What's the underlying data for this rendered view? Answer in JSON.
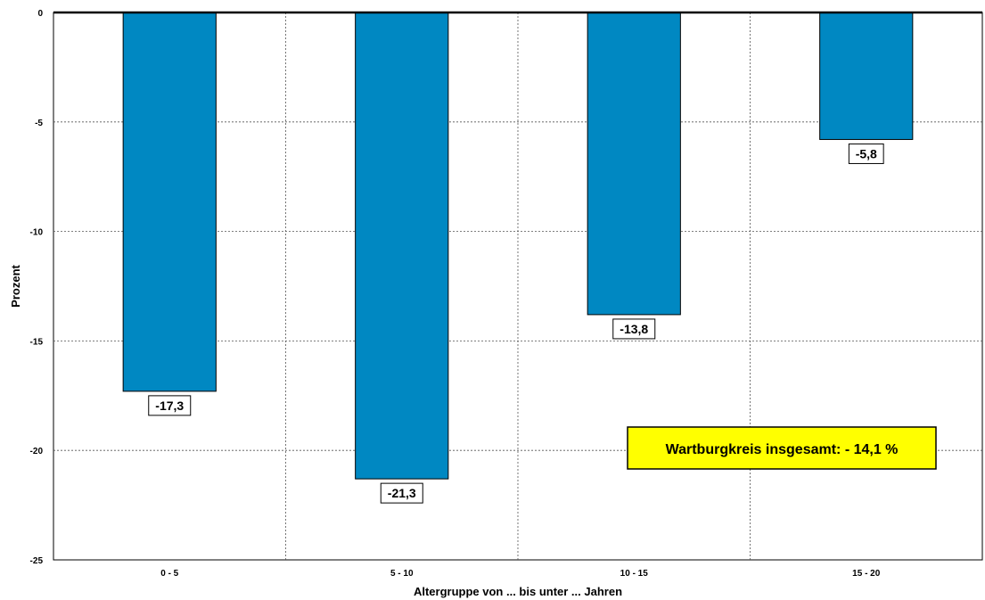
{
  "chart_data": {
    "type": "bar",
    "categories": [
      "0 - 5",
      "5 - 10",
      "10 - 15",
      "15 - 20"
    ],
    "values": [
      -17.3,
      -21.3,
      -13.8,
      -5.8
    ],
    "value_labels": [
      "-17,3",
      "-21,3",
      "-13,8",
      "-5,8"
    ],
    "xlabel": "Altergruppe von ... bis unter ... Jahren",
    "ylabel": "Prozent",
    "ylim": [
      -25,
      0
    ],
    "yticks": [
      0,
      -5,
      -10,
      -15,
      -20,
      -25
    ],
    "ytick_labels": [
      "0",
      "-5",
      "-10",
      "-15",
      "-20",
      "-25"
    ],
    "grid": true,
    "bar_color": "#0088C2",
    "annotation": {
      "text": "Wartburgkreis insgesamt:  - 14,1 %",
      "background": "#FFFF00"
    }
  }
}
